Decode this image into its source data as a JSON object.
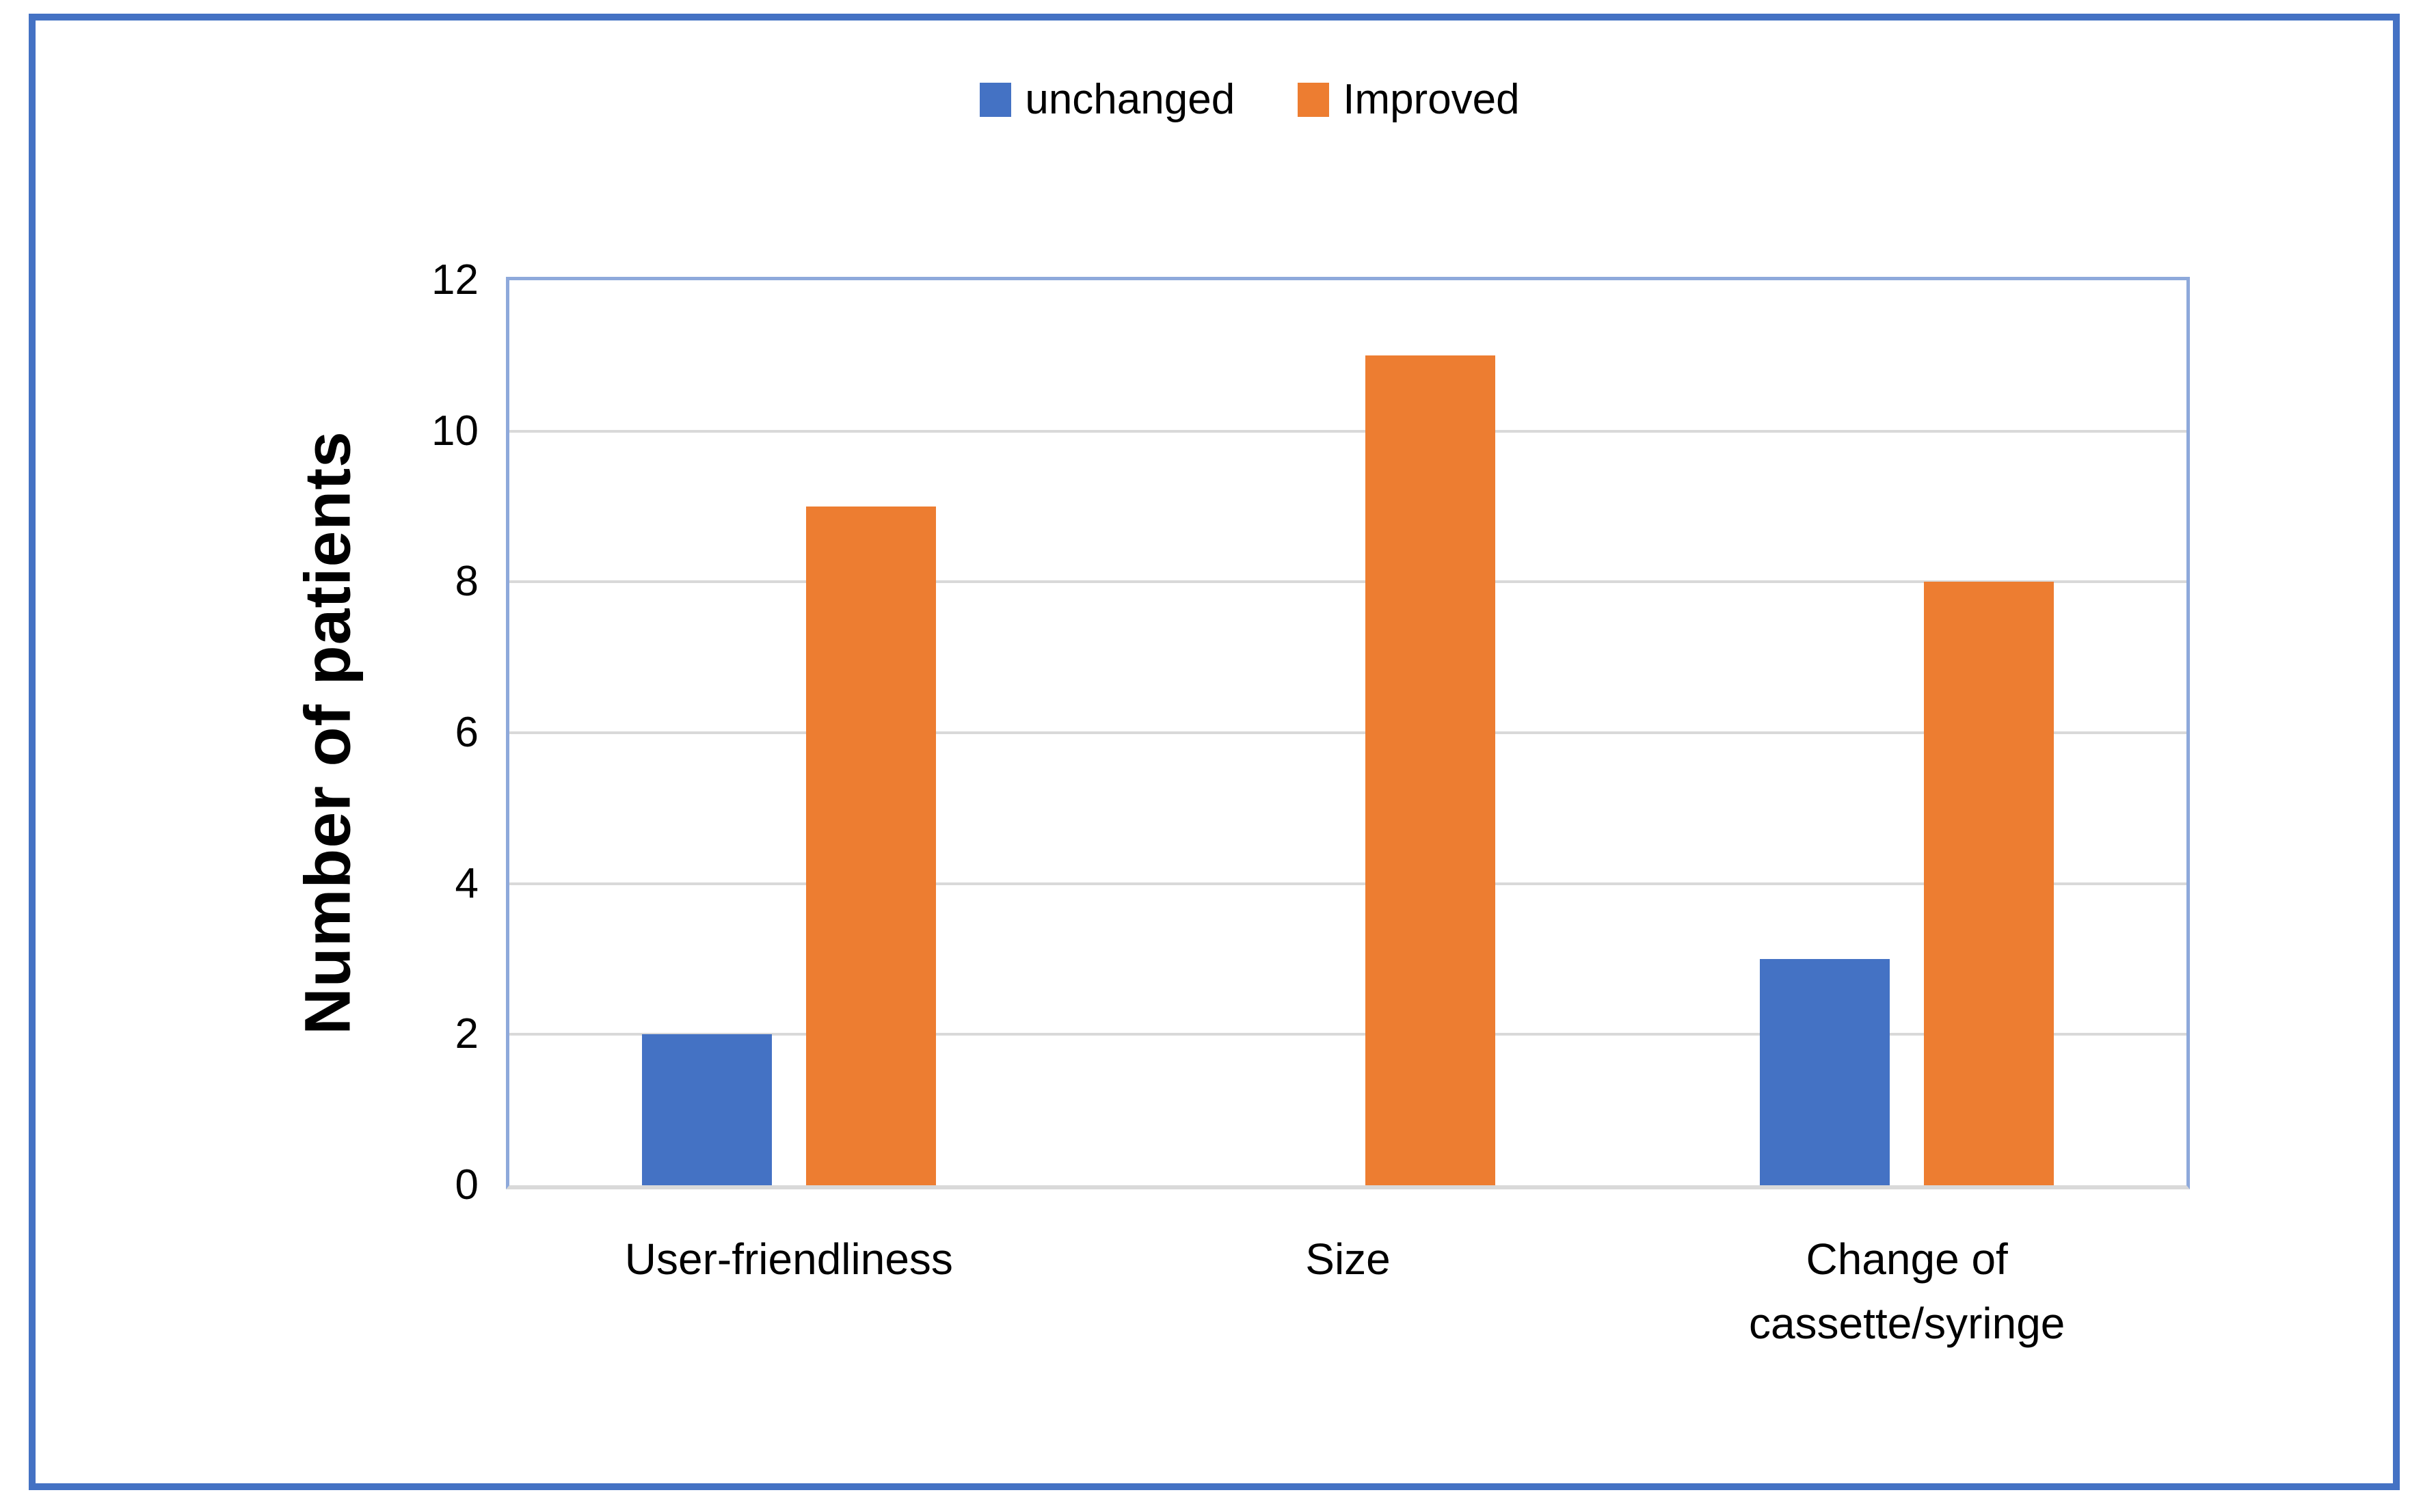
{
  "figure": {
    "background": "#ffffff",
    "border_color": "#4472c4"
  },
  "legend": {
    "position": "top-center",
    "items": [
      {
        "label": "unchanged",
        "color": "#4472c4"
      },
      {
        "label": "Improved",
        "color": "#ed7d31"
      }
    ]
  },
  "chart_data": {
    "type": "bar",
    "title": "",
    "xlabel": "",
    "ylabel": "Number of patients",
    "categories": [
      "User-friendliness",
      "Size",
      "Change of\ncassette/syringe"
    ],
    "series": [
      {
        "name": "unchanged",
        "color": "#4472c4",
        "values": [
          2,
          0,
          3
        ]
      },
      {
        "name": "Improved",
        "color": "#ed7d31",
        "values": [
          9,
          11,
          8
        ]
      }
    ],
    "ylim": [
      0,
      12
    ],
    "yticks": [
      0,
      2,
      4,
      6,
      8,
      10,
      12
    ],
    "grid": "horizontal",
    "gridline_color": "#d9d9d9",
    "plot_border_color": "#8ea9db",
    "axis_line_color": "#d9d9d9",
    "legend_position": "top"
  }
}
